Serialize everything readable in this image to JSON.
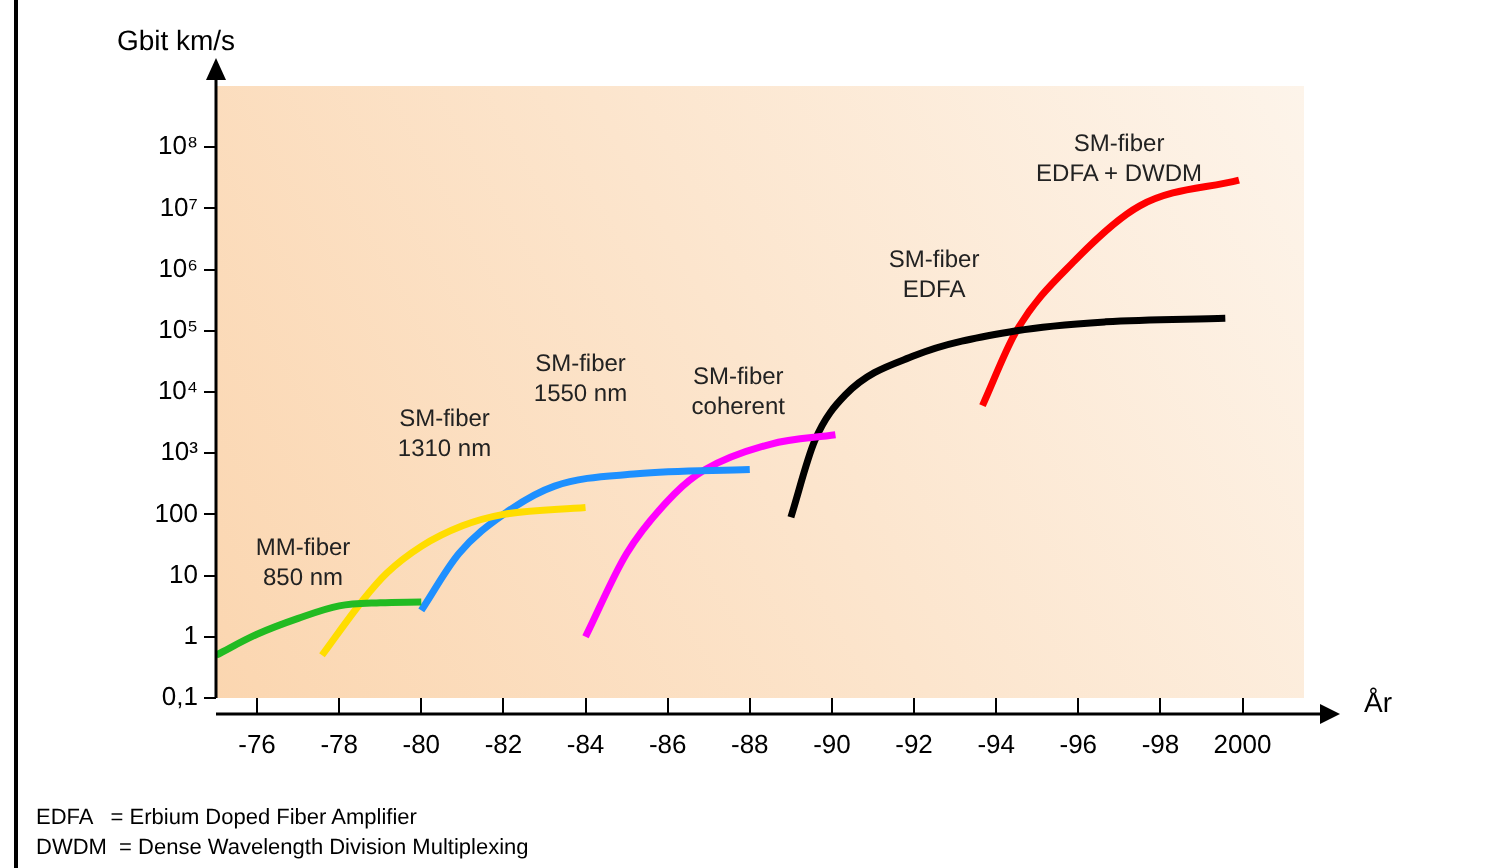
{
  "chart_data": {
    "type": "line",
    "xlabel": "År",
    "ylabel": "Gbit km/s",
    "log": "y",
    "grid": false,
    "legend": false,
    "marker": "none",
    "line_style": "solid",
    "xlim": [
      "1975",
      "2001-07"
    ],
    "xticks": [
      {
        "value": "1976",
        "label": "-76"
      },
      {
        "value": "1978",
        "label": "-78"
      },
      {
        "value": "1980",
        "label": "-80"
      },
      {
        "value": "1982",
        "label": "-82"
      },
      {
        "value": "1984",
        "label": "-84"
      },
      {
        "value": "1986",
        "label": "-86"
      },
      {
        "value": "1988",
        "label": "-88"
      },
      {
        "value": "1990",
        "label": "-90"
      },
      {
        "value": "1992",
        "label": "-92"
      },
      {
        "value": "1994",
        "label": "-94"
      },
      {
        "value": "1996",
        "label": "-96"
      },
      {
        "value": "1998",
        "label": "-98"
      },
      {
        "value": "2000",
        "label": "2000"
      }
    ],
    "ylim": [
      0.1,
      1000000000
    ],
    "yticks": [
      {
        "value": 0.1,
        "label": "0,1"
      },
      1,
      10,
      100,
      {
        "value": 1000,
        "label": "10³"
      },
      {
        "value": 10000,
        "label": "10⁴"
      },
      {
        "value": 100000,
        "label": "10⁵"
      },
      {
        "value": 1000000,
        "label": "10⁶"
      },
      {
        "value": 10000000,
        "label": "10⁷"
      },
      {
        "value": 100000000,
        "label": "10⁸"
      }
    ],
    "series": [
      {
        "name": "MM-fiber 850 nm",
        "color": "#22bb22",
        "x": [
          "1975",
          "1976",
          "1977",
          "1978",
          "1979",
          "1980"
        ],
        "values": [
          0.5,
          1.1,
          2,
          3.2,
          3.6,
          3.7
        ]
      },
      {
        "name": "SM-fiber 1310 nm",
        "color": "#ffdd00",
        "x": [
          "1977-08",
          "1978-08",
          "1979-03",
          "1980",
          "1981",
          "1982",
          "1984"
        ],
        "values": [
          0.5,
          4,
          11,
          30,
          65,
          100,
          130
        ]
      },
      {
        "name": "SM-fiber 1550 nm",
        "color": "#1e90ff",
        "x": [
          "1980",
          "1980-12",
          "1982",
          "1983-04",
          "1985-04",
          "1988"
        ],
        "values": [
          2.7,
          23,
          100,
          290,
          460,
          540
        ]
      },
      {
        "name": "SM-fiber coherent",
        "color": "#ff00ff",
        "x": [
          "1984",
          "1985",
          "1986-03",
          "1986-12",
          "1988-07",
          "1990-02"
        ],
        "values": [
          1,
          23,
          215,
          540,
          1400,
          2000
        ]
      },
      {
        "name": "SM-fiber EDFA",
        "color": "#000000",
        "x": [
          "1989",
          "1989-08",
          "1990-05",
          "1992",
          "1994-07",
          "1996-09",
          "1999-08"
        ],
        "values": [
          90,
          1600,
          9000,
          39000,
          100000,
          140000,
          160000
        ]
      },
      {
        "name": "SM-fiber EDFA + DWDM",
        "color": "#ff0000",
        "x": [
          "1993-09",
          "1994-07",
          "1995-12",
          "1997-07",
          "1999-12"
        ],
        "values": [
          6000,
          100000,
          1400000,
          11000000,
          29000000
        ]
      }
    ],
    "annotations": [
      "EDFA   = Erbium Doped Fiber Amplifier",
      "DWDM  = Dense Wavelength Division Multiplexing"
    ]
  }
}
